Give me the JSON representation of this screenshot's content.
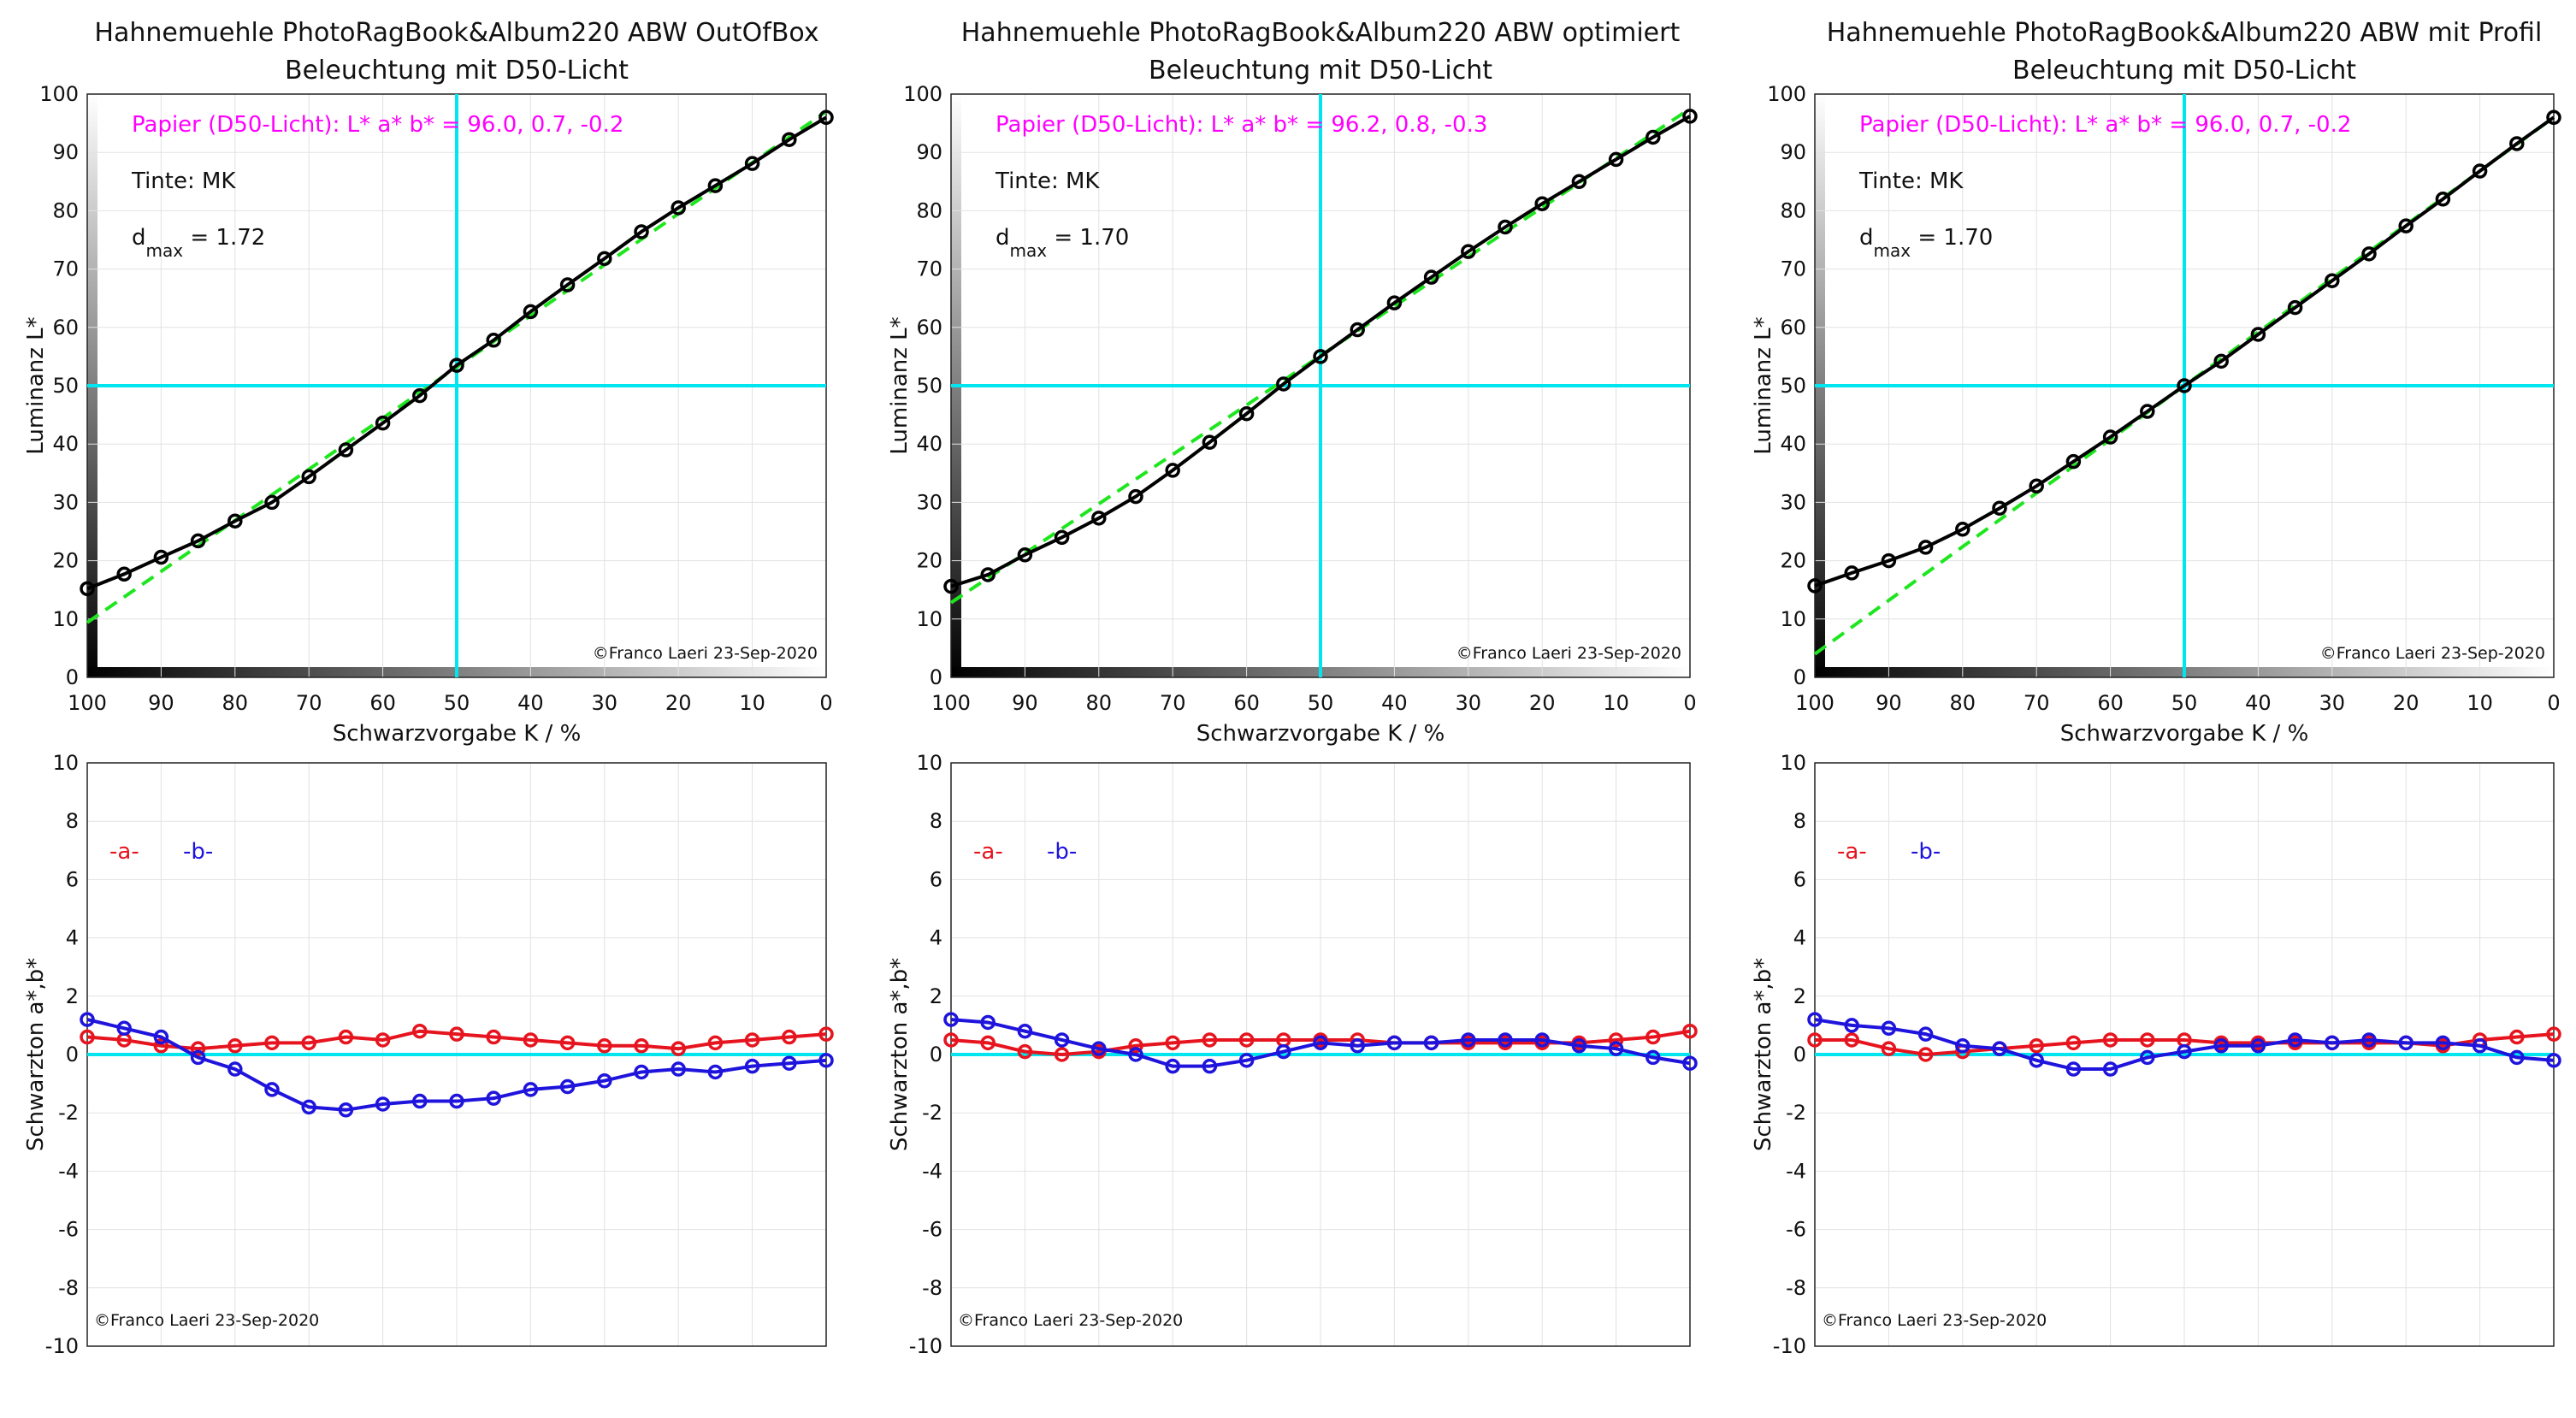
{
  "x_ticks": [
    100,
    90,
    80,
    70,
    60,
    50,
    40,
    30,
    20,
    10,
    0
  ],
  "top_y_ticks": [
    0,
    10,
    20,
    30,
    40,
    50,
    60,
    70,
    80,
    90,
    100
  ],
  "bottom_y_ticks": [
    -10,
    -8,
    -6,
    -4,
    -2,
    0,
    2,
    4,
    6,
    8,
    10
  ],
  "x_axis_label": "Schwarzvorgabe  K / %",
  "top_y_axis_label": "Luminanz  L*",
  "bottom_y_axis_label": "Schwarzton a*,b*",
  "legend": {
    "a_label": "-a-",
    "b_label": "-b-"
  },
  "copyright": "©Franco Laeri  23-Sep-2020",
  "colors": {
    "l_series": "#000000",
    "l_ideal": "#1ee61e",
    "crosshair": "#00e5ee",
    "a_series": "#e6141e",
    "b_series": "#1e14dc",
    "paper_text": "#ff00ff",
    "grid": "#e2e2e2"
  },
  "chart_data": [
    {
      "type": "line",
      "title_line1": "Hahnemuehle PhotoRagBook&Album220 ABW OutOfBox",
      "title_line2": "Beleuchtung mit D50-Licht",
      "paper_text": "Papier (D50-Licht): L* a* b* = 96.0, 0.7, -0.2",
      "ink_text": "Tinte:  MK",
      "dmax_main": "d",
      "dmax_sub": "max",
      "dmax_value": " = 1.72",
      "xlim": [
        100,
        0
      ],
      "ylim_top": [
        0,
        100
      ],
      "ylim_bottom": [
        -10,
        10
      ],
      "x": [
        100,
        95,
        90,
        85,
        80,
        75,
        70,
        65,
        60,
        55,
        50,
        45,
        40,
        35,
        30,
        25,
        20,
        15,
        10,
        5,
        0
      ],
      "L": [
        15.2,
        17.7,
        20.6,
        23.4,
        26.8,
        30.0,
        34.4,
        39.0,
        43.6,
        48.3,
        53.5,
        57.8,
        62.7,
        67.3,
        71.8,
        76.4,
        80.5,
        84.3,
        88.1,
        92.2,
        96.0
      ],
      "ideal": [
        [
          100,
          9.4
        ],
        [
          0,
          97.0
        ]
      ],
      "a": [
        0.6,
        0.5,
        0.3,
        0.2,
        0.3,
        0.4,
        0.4,
        0.6,
        0.5,
        0.8,
        0.7,
        0.6,
        0.5,
        0.4,
        0.3,
        0.3,
        0.2,
        0.4,
        0.5,
        0.6,
        0.7
      ],
      "b": [
        1.2,
        0.9,
        0.6,
        -0.1,
        -0.5,
        -1.2,
        -1.8,
        -1.9,
        -1.7,
        -1.6,
        -1.6,
        -1.5,
        -1.2,
        -1.1,
        -0.9,
        -0.6,
        -0.5,
        -0.6,
        -0.4,
        -0.3,
        -0.2
      ]
    },
    {
      "type": "line",
      "title_line1": "Hahnemuehle PhotoRagBook&Album220 ABW optimiert",
      "title_line2": "Beleuchtung mit D50-Licht",
      "paper_text": "Papier (D50-Licht): L* a* b* = 96.2, 0.8, -0.3",
      "ink_text": "Tinte:  MK",
      "dmax_main": "d",
      "dmax_sub": "max",
      "dmax_value": " = 1.70",
      "xlim": [
        100,
        0
      ],
      "ylim_top": [
        0,
        100
      ],
      "ylim_bottom": [
        -10,
        10
      ],
      "x": [
        100,
        95,
        90,
        85,
        80,
        75,
        70,
        65,
        60,
        55,
        50,
        45,
        40,
        35,
        30,
        25,
        20,
        15,
        10,
        5,
        0
      ],
      "L": [
        15.6,
        17.6,
        21.0,
        24.0,
        27.3,
        31.0,
        35.5,
        40.3,
        45.2,
        50.3,
        55.0,
        59.6,
        64.2,
        68.6,
        73.0,
        77.2,
        81.2,
        85.0,
        88.8,
        92.6,
        96.2
      ],
      "ideal": [
        [
          100,
          12.8
        ],
        [
          0,
          97.5
        ]
      ],
      "a": [
        0.5,
        0.4,
        0.1,
        0.0,
        0.1,
        0.3,
        0.4,
        0.5,
        0.5,
        0.5,
        0.5,
        0.5,
        0.4,
        0.4,
        0.4,
        0.4,
        0.4,
        0.4,
        0.5,
        0.6,
        0.8
      ],
      "b": [
        1.2,
        1.1,
        0.8,
        0.5,
        0.2,
        0.0,
        -0.4,
        -0.4,
        -0.2,
        0.1,
        0.4,
        0.3,
        0.4,
        0.4,
        0.5,
        0.5,
        0.5,
        0.3,
        0.2,
        -0.1,
        -0.3
      ]
    },
    {
      "type": "line",
      "title_line1": "Hahnemuehle PhotoRagBook&Album220 ABW mit Profil",
      "title_line2": "Beleuchtung mit D50-Licht",
      "paper_text": "Papier (D50-Licht): L* a* b* = 96.0, 0.7, -0.2",
      "ink_text": "Tinte:  MK",
      "dmax_main": "d",
      "dmax_sub": "max",
      "dmax_value": " = 1.70",
      "xlim": [
        100,
        0
      ],
      "ylim_top": [
        0,
        100
      ],
      "ylim_bottom": [
        -10,
        10
      ],
      "x": [
        100,
        95,
        90,
        85,
        80,
        75,
        70,
        65,
        60,
        55,
        50,
        45,
        40,
        35,
        30,
        25,
        20,
        15,
        10,
        5,
        0
      ],
      "L": [
        15.7,
        17.9,
        20.0,
        22.3,
        25.4,
        29.0,
        32.8,
        37.0,
        41.2,
        45.6,
        50.0,
        54.2,
        58.8,
        63.4,
        68.0,
        72.6,
        77.4,
        82.0,
        86.8,
        91.5,
        96.0
      ],
      "ideal": [
        [
          100,
          4.0
        ],
        [
          0,
          96.0
        ]
      ],
      "a": [
        0.5,
        0.5,
        0.2,
        0.0,
        0.1,
        0.2,
        0.3,
        0.4,
        0.5,
        0.5,
        0.5,
        0.4,
        0.4,
        0.4,
        0.4,
        0.4,
        0.4,
        0.3,
        0.5,
        0.6,
        0.7
      ],
      "b": [
        1.2,
        1.0,
        0.9,
        0.7,
        0.3,
        0.2,
        -0.2,
        -0.5,
        -0.5,
        -0.1,
        0.1,
        0.3,
        0.3,
        0.5,
        0.4,
        0.5,
        0.4,
        0.4,
        0.3,
        -0.1,
        -0.2
      ]
    }
  ]
}
